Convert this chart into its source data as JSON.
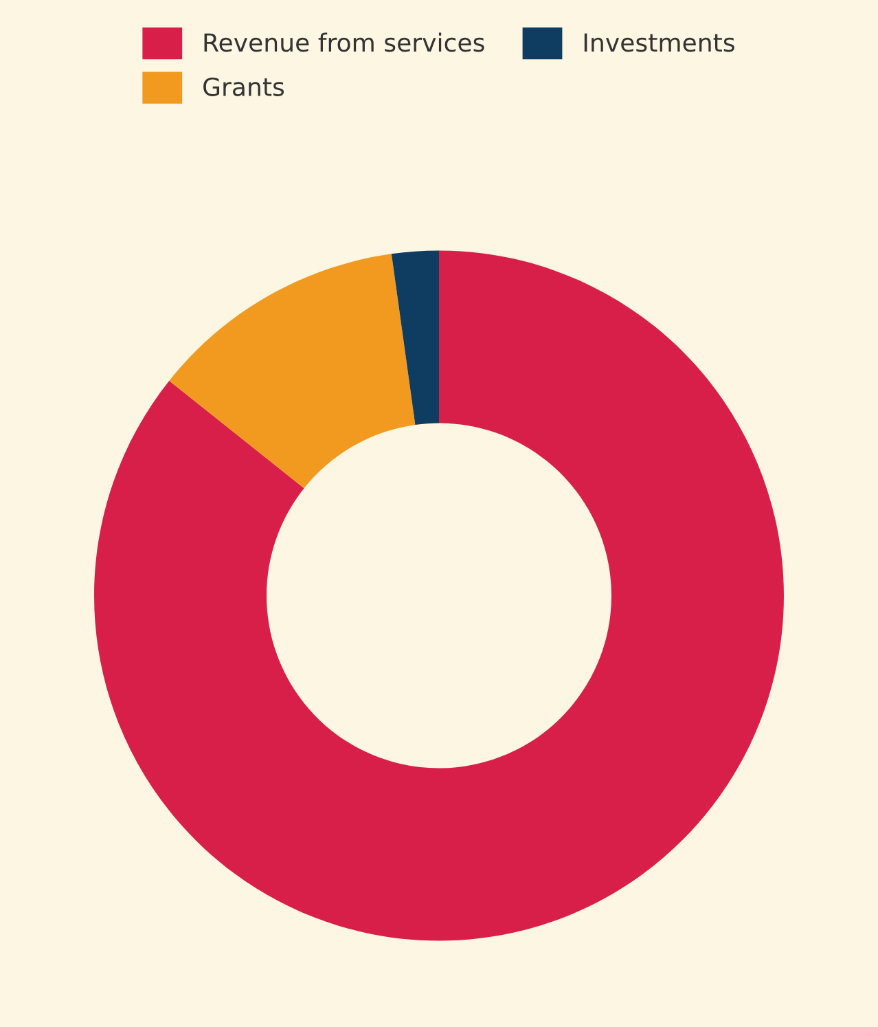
{
  "chart_data": {
    "type": "donut",
    "categories": [
      "Revenue from services",
      "Grants",
      "Investments"
    ],
    "values": [
      85.7,
      12.1,
      2.2
    ],
    "colors": [
      "#d81f4a",
      "#f29a1f",
      "#0f3d62"
    ],
    "legend": "top"
  }
}
